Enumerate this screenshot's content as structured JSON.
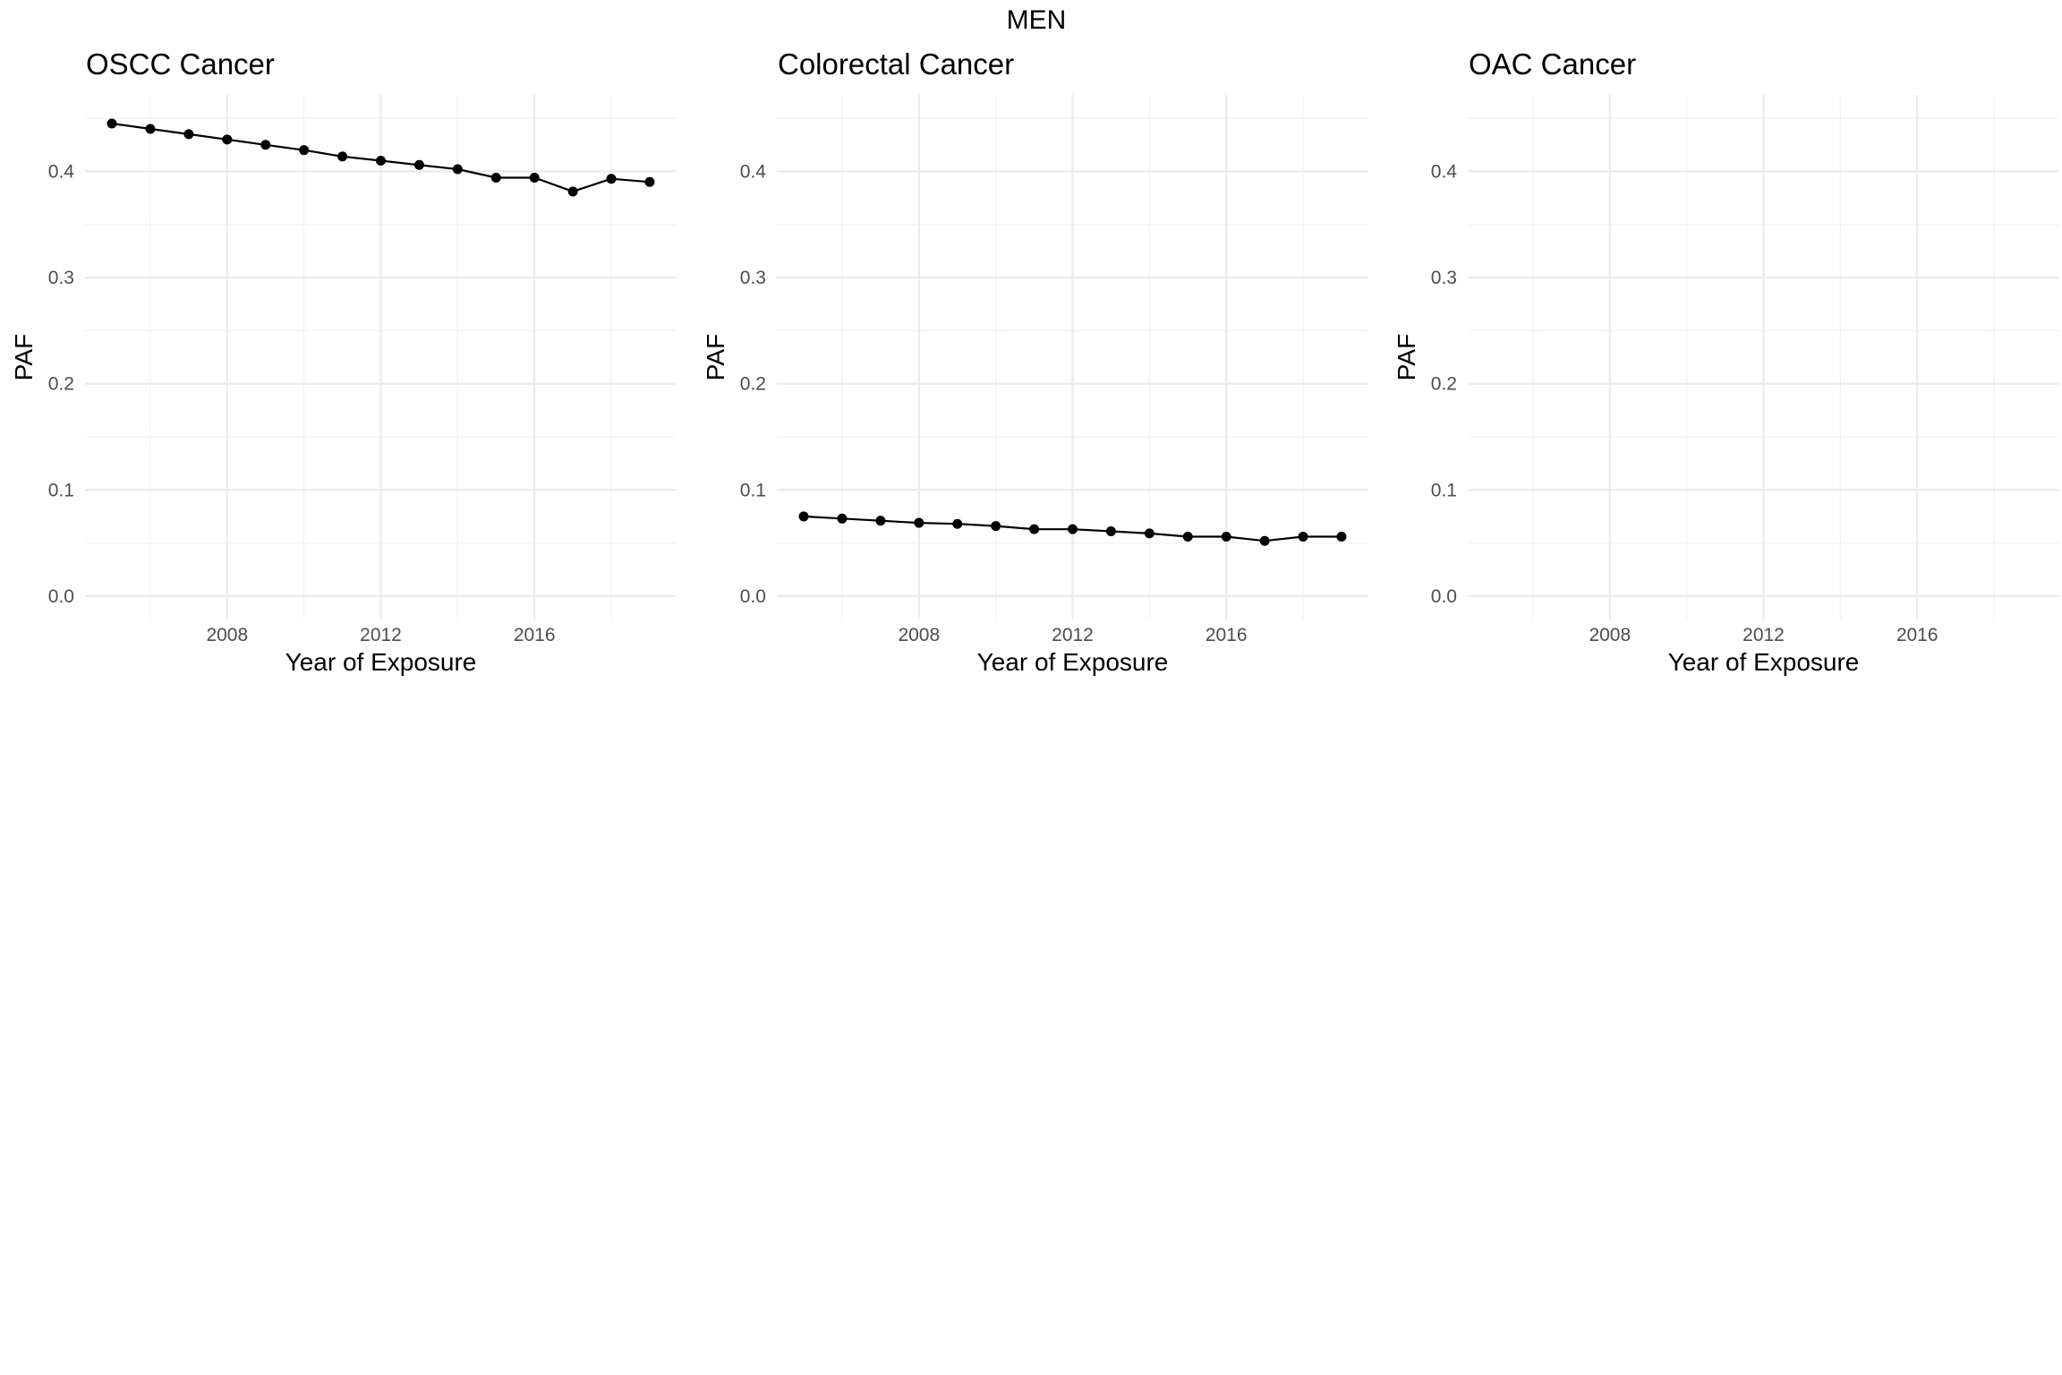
{
  "figure": {
    "title": "MEN"
  },
  "chart_data": [
    {
      "type": "line",
      "title": "OSCC Cancer",
      "xlabel": "Year of Exposure",
      "ylabel": "PAF",
      "x_ticks": [
        2008,
        2012,
        2016
      ],
      "y_ticks": [
        0.0,
        0.1,
        0.2,
        0.3,
        0.4
      ],
      "xlim": [
        2004.3,
        2019.7
      ],
      "ylim": [
        -0.022,
        0.472
      ],
      "grid": true,
      "legend": "none",
      "x": [
        2005,
        2006,
        2007,
        2008,
        2009,
        2010,
        2011,
        2012,
        2013,
        2014,
        2015,
        2016,
        2017,
        2018,
        2019
      ],
      "values": [
        0.445,
        0.44,
        0.435,
        0.43,
        0.425,
        0.42,
        0.414,
        0.41,
        0.406,
        0.402,
        0.394,
        0.394,
        0.381,
        0.393,
        0.39
      ]
    },
    {
      "type": "line",
      "title": "Colorectal Cancer",
      "xlabel": "Year of Exposure",
      "ylabel": "PAF",
      "x_ticks": [
        2008,
        2012,
        2016
      ],
      "y_ticks": [
        0.0,
        0.1,
        0.2,
        0.3,
        0.4
      ],
      "xlim": [
        2004.3,
        2019.7
      ],
      "ylim": [
        -0.022,
        0.472
      ],
      "grid": true,
      "legend": "none",
      "x": [
        2005,
        2006,
        2007,
        2008,
        2009,
        2010,
        2011,
        2012,
        2013,
        2014,
        2015,
        2016,
        2017,
        2018,
        2019
      ],
      "values": [
        0.075,
        0.073,
        0.071,
        0.069,
        0.068,
        0.066,
        0.063,
        0.063,
        0.061,
        0.059,
        0.056,
        0.056,
        0.052,
        0.056,
        0.056
      ]
    },
    {
      "type": "line",
      "title": "OAC Cancer",
      "xlabel": "Year of Exposure",
      "ylabel": "PAF",
      "x_ticks": [
        2008,
        2012,
        2016
      ],
      "y_ticks": [
        0.0,
        0.1,
        0.2,
        0.3,
        0.4
      ],
      "xlim": [
        2004.3,
        2019.7
      ],
      "ylim": [
        -0.022,
        0.472
      ],
      "grid": true,
      "legend": "none",
      "x": [],
      "values": []
    }
  ]
}
